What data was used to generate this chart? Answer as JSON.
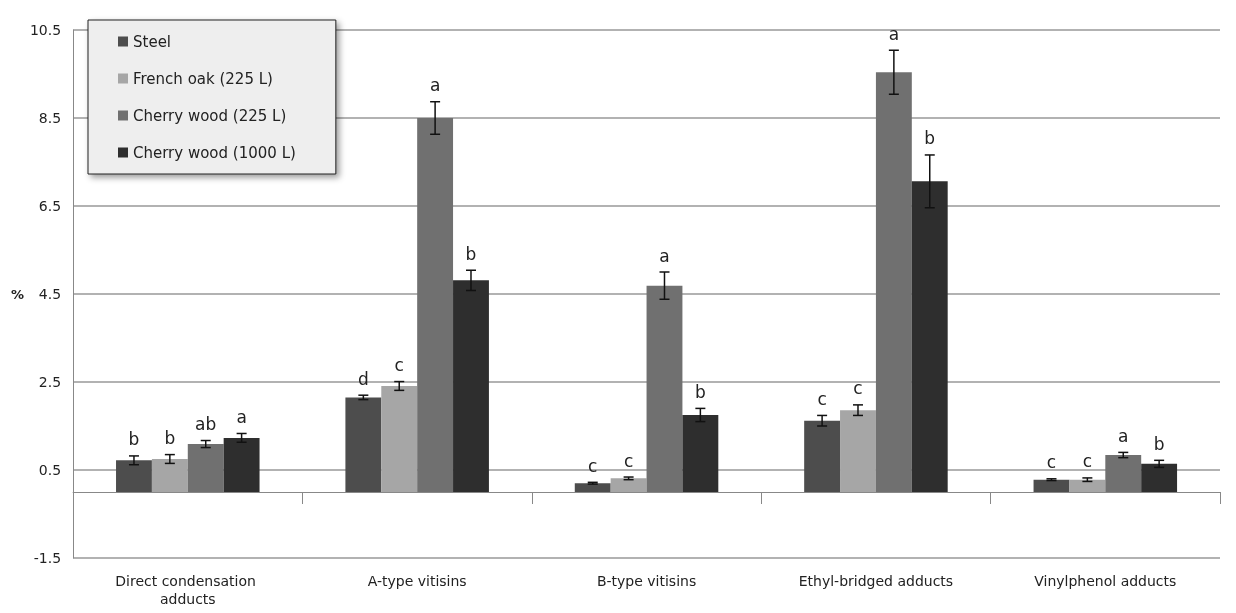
{
  "chart_data": {
    "type": "bar",
    "ylabel": "%",
    "categories": [
      "Direct condensation adducts",
      "A-type vitisins",
      "B-type vitisins",
      "Ethyl-bridged adducts",
      "Vinylphenol adducts"
    ],
    "series": [
      {
        "name": "Steel",
        "color": "#4d4d4d",
        "values": [
          0.72,
          2.15,
          0.2,
          1.62,
          0.28
        ],
        "value_labels": [
          "b",
          "d",
          "c",
          "c",
          "c"
        ],
        "errors": [
          0.1,
          0.05,
          0.02,
          0.12,
          0.02
        ]
      },
      {
        "name": "French oak (225 L)",
        "color": "#a6a6a6",
        "values": [
          0.75,
          2.41,
          0.31,
          1.86,
          0.28
        ],
        "value_labels": [
          "b",
          "c",
          "c",
          "c",
          "c"
        ],
        "errors": [
          0.1,
          0.1,
          0.03,
          0.12,
          0.04
        ]
      },
      {
        "name": "Cherry wood (225 L)",
        "color": "#707070",
        "values": [
          1.09,
          8.5,
          4.69,
          9.54,
          0.84
        ],
        "value_labels": [
          "ab",
          "a",
          "a",
          "a",
          "a"
        ],
        "errors": [
          0.08,
          0.37,
          0.31,
          0.5,
          0.06
        ]
      },
      {
        "name": "Cherry wood (1000 L)",
        "color": "#2e2e2e",
        "values": [
          1.23,
          4.81,
          1.75,
          7.06,
          0.64
        ],
        "value_labels": [
          "a",
          "b",
          "b",
          "b",
          "b"
        ],
        "errors": [
          0.1,
          0.23,
          0.15,
          0.6,
          0.08
        ]
      }
    ],
    "ylim": [
      -1.5,
      10.5
    ],
    "yticks": [
      -1.5,
      0.5,
      2.5,
      4.5,
      6.5,
      8.5,
      10.5
    ],
    "grid": "y",
    "legend": "top left"
  }
}
